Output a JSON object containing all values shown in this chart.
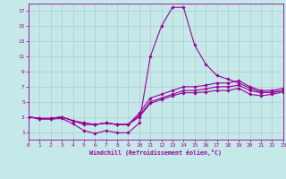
{
  "xlabel": "Windchill (Refroidissement éolien,°C)",
  "xlim": [
    0,
    23
  ],
  "ylim": [
    0,
    18
  ],
  "xticks": [
    0,
    1,
    2,
    3,
    4,
    5,
    6,
    7,
    8,
    9,
    10,
    11,
    12,
    13,
    14,
    15,
    16,
    17,
    18,
    19,
    20,
    21,
    22,
    23
  ],
  "yticks": [
    1,
    3,
    5,
    7,
    9,
    11,
    13,
    15,
    17
  ],
  "bg_color": "#c5e8e8",
  "grid_color": "#b0cccc",
  "line_color": "#990099",
  "lines": [
    {
      "x": [
        0,
        1,
        2,
        3,
        4,
        5,
        6,
        7,
        8,
        9,
        10,
        11,
        12,
        13,
        14,
        15,
        16,
        17,
        18,
        19,
        20,
        21,
        22,
        23
      ],
      "y": [
        3.0,
        2.7,
        2.7,
        2.8,
        2.1,
        1.2,
        0.8,
        1.2,
        0.9,
        0.9,
        2.2,
        11.0,
        15.0,
        17.5,
        17.5,
        12.5,
        10.0,
        8.5,
        8.0,
        7.5,
        6.8,
        6.3,
        6.2,
        6.5
      ]
    },
    {
      "x": [
        0,
        1,
        2,
        3,
        4,
        5,
        6,
        7,
        8,
        9,
        10,
        11,
        12,
        13,
        14,
        15,
        16,
        17,
        18,
        19,
        20,
        21,
        22,
        23
      ],
      "y": [
        3.0,
        2.8,
        2.8,
        3.0,
        2.5,
        2.2,
        2.0,
        2.2,
        2.0,
        2.0,
        3.5,
        5.5,
        6.0,
        6.5,
        7.0,
        7.0,
        7.2,
        7.5,
        7.5,
        7.8,
        7.0,
        6.5,
        6.5,
        6.8
      ]
    },
    {
      "x": [
        0,
        1,
        2,
        3,
        4,
        5,
        6,
        7,
        8,
        9,
        10,
        11,
        12,
        13,
        14,
        15,
        16,
        17,
        18,
        19,
        20,
        21,
        22,
        23
      ],
      "y": [
        3.0,
        2.8,
        2.8,
        3.0,
        2.5,
        2.2,
        2.0,
        2.2,
        2.0,
        2.0,
        3.2,
        5.0,
        5.5,
        6.0,
        6.5,
        6.5,
        6.7,
        7.0,
        7.0,
        7.2,
        6.5,
        6.2,
        6.3,
        6.5
      ]
    },
    {
      "x": [
        0,
        1,
        2,
        3,
        4,
        5,
        6,
        7,
        8,
        9,
        10,
        11,
        12,
        13,
        14,
        15,
        16,
        17,
        18,
        19,
        20,
        21,
        22,
        23
      ],
      "y": [
        3.0,
        2.8,
        2.8,
        3.0,
        2.5,
        2.0,
        2.0,
        2.2,
        2.0,
        2.0,
        3.0,
        4.8,
        5.3,
        5.8,
        6.2,
        6.2,
        6.3,
        6.5,
        6.5,
        6.8,
        6.0,
        5.8,
        6.0,
        6.3
      ]
    }
  ]
}
